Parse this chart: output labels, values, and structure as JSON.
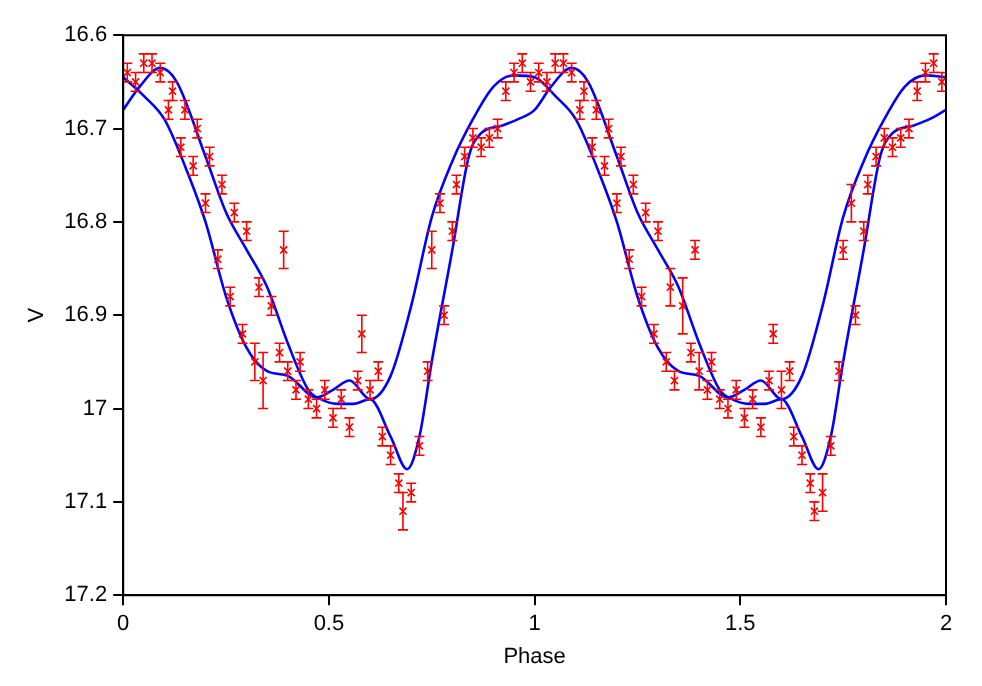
{
  "chart_data": {
    "type": "scatter",
    "xlabel": "Phase",
    "ylabel": "V",
    "xlim": [
      0,
      2
    ],
    "ylim": [
      17.2,
      16.6
    ],
    "xticks": [
      0,
      0.5,
      1,
      1.5,
      2
    ],
    "yticks": [
      16.6,
      16.7,
      16.8,
      16.9,
      17,
      17.1,
      17.2
    ],
    "grid": false,
    "legend": false,
    "series": [
      {
        "type": "scatter",
        "color": "#ff0000",
        "marker": "cross",
        "x": [
          0.01,
          0.03,
          0.05,
          0.07,
          0.09,
          0.11,
          0.12,
          0.14,
          0.15,
          0.17,
          0.18,
          0.2,
          0.21,
          0.23,
          0.24,
          0.26,
          0.27,
          0.29,
          0.3,
          0.32,
          0.33,
          0.34,
          0.36,
          0.38,
          0.39,
          0.4,
          0.42,
          0.43,
          0.45,
          0.47,
          0.49,
          0.51,
          0.53,
          0.55,
          0.57,
          0.58,
          0.6,
          0.62,
          0.63,
          0.65,
          0.67,
          0.68,
          0.7,
          0.72,
          0.74,
          0.75,
          0.77,
          0.78,
          0.8,
          0.81,
          0.83,
          0.85,
          0.87,
          0.89,
          0.91,
          0.93,
          0.95,
          0.97,
          0.99,
          1.01,
          1.03,
          1.05,
          1.07,
          1.09,
          1.11,
          1.12,
          1.14,
          1.15,
          1.17,
          1.18,
          1.2,
          1.21,
          1.23,
          1.24,
          1.26,
          1.27,
          1.29,
          1.3,
          1.32,
          1.33,
          1.34,
          1.36,
          1.38,
          1.39,
          1.4,
          1.42,
          1.43,
          1.45,
          1.47,
          1.49,
          1.51,
          1.53,
          1.55,
          1.57,
          1.58,
          1.6,
          1.62,
          1.63,
          1.65,
          1.67,
          1.68,
          1.7,
          1.72,
          1.74,
          1.75,
          1.77,
          1.78,
          1.8,
          1.81,
          1.83,
          1.85,
          1.87,
          1.89,
          1.91,
          1.93,
          1.95,
          1.97,
          1.99
        ],
        "values": [
          16.64,
          16.65,
          16.63,
          16.63,
          16.64,
          16.68,
          16.66,
          16.72,
          16.68,
          16.74,
          16.7,
          16.78,
          16.73,
          16.84,
          16.76,
          16.88,
          16.79,
          16.92,
          16.81,
          16.95,
          16.87,
          16.97,
          16.89,
          16.94,
          16.83,
          16.96,
          16.98,
          16.95,
          16.99,
          17,
          16.98,
          17.01,
          16.99,
          17.02,
          16.97,
          16.92,
          16.98,
          16.96,
          17.03,
          17.05,
          17.08,
          17.11,
          17.09,
          17.04,
          16.96,
          16.83,
          16.78,
          16.9,
          16.81,
          16.76,
          16.73,
          16.71,
          16.72,
          16.71,
          16.7,
          16.66,
          16.64,
          16.63,
          16.65,
          16.64,
          16.65,
          16.63,
          16.63,
          16.64,
          16.68,
          16.66,
          16.72,
          16.68,
          16.74,
          16.7,
          16.78,
          16.73,
          16.84,
          16.76,
          16.88,
          16.79,
          16.92,
          16.81,
          16.95,
          16.87,
          16.97,
          16.89,
          16.94,
          16.83,
          16.96,
          16.98,
          16.95,
          16.99,
          17,
          16.98,
          17.01,
          16.99,
          17.02,
          16.97,
          16.92,
          16.98,
          16.96,
          17.03,
          17.05,
          17.08,
          17.11,
          17.09,
          17.04,
          16.96,
          16.83,
          16.78,
          16.9,
          16.81,
          16.76,
          16.73,
          16.71,
          16.72,
          16.71,
          16.7,
          16.66,
          16.64,
          16.63,
          16.65
        ],
        "errors": [
          0.01,
          0.01,
          0.01,
          0.01,
          0.01,
          0.01,
          0.01,
          0.01,
          0.01,
          0.01,
          0.01,
          0.01,
          0.01,
          0.01,
          0.01,
          0.01,
          0.01,
          0.01,
          0.01,
          0.02,
          0.01,
          0.03,
          0.01,
          0.01,
          0.02,
          0.01,
          0.01,
          0.01,
          0.01,
          0.01,
          0.01,
          0.01,
          0.01,
          0.01,
          0.01,
          0.02,
          0.01,
          0.01,
          0.01,
          0.01,
          0.01,
          0.02,
          0.01,
          0.01,
          0.01,
          0.02,
          0.01,
          0.01,
          0.01,
          0.01,
          0.01,
          0.01,
          0.01,
          0.01,
          0.01,
          0.01,
          0.01,
          0.01,
          0.01,
          0.01,
          0.01,
          0.01,
          0.01,
          0.01,
          0.01,
          0.01,
          0.01,
          0.01,
          0.01,
          0.01,
          0.01,
          0.01,
          0.01,
          0.01,
          0.01,
          0.01,
          0.01,
          0.01,
          0.01,
          0.02,
          0.01,
          0.03,
          0.01,
          0.01,
          0.02,
          0.01,
          0.01,
          0.01,
          0.01,
          0.01,
          0.01,
          0.01,
          0.01,
          0.01,
          0.01,
          0.02,
          0.01,
          0.01,
          0.01,
          0.01,
          0.01,
          0.02,
          0.01,
          0.01,
          0.01,
          0.02,
          0.01,
          0.01,
          0.01,
          0.01,
          0.01,
          0.01,
          0.01,
          0.01,
          0.01,
          0.01,
          0.01,
          0.01
        ]
      },
      {
        "type": "line",
        "color": "#0000ff",
        "marker": "none",
        "line_style": "solid",
        "x": [
          0,
          0.04,
          0.09,
          0.13,
          0.2,
          0.25,
          0.3,
          0.35,
          0.4,
          0.45,
          0.48,
          0.52,
          0.56,
          0.6,
          0.65,
          0.69,
          0.72,
          0.75,
          0.8,
          0.84,
          0.87,
          0.92,
          0.96,
          1,
          1.04,
          1.09,
          1.13,
          1.2,
          1.25,
          1.3,
          1.35,
          1.4,
          1.45,
          1.48,
          1.52,
          1.56,
          1.6,
          1.65,
          1.69,
          1.72,
          1.75,
          1.8,
          1.84,
          1.87,
          1.92,
          1.96,
          2
        ],
        "values": [
          16.68,
          16.655,
          16.635,
          16.65,
          16.73,
          16.79,
          16.83,
          16.87,
          16.93,
          16.98,
          16.99,
          16.995,
          16.995,
          16.99,
          17.03,
          17.065,
          17.03,
          16.95,
          16.83,
          16.73,
          16.705,
          16.697,
          16.69,
          16.68,
          16.655,
          16.635,
          16.65,
          16.73,
          16.79,
          16.83,
          16.87,
          16.93,
          16.98,
          16.99,
          16.995,
          16.995,
          16.99,
          17.03,
          17.065,
          17.03,
          16.95,
          16.83,
          16.73,
          16.705,
          16.697,
          16.69,
          16.68
        ]
      },
      {
        "type": "line",
        "color": "#0000ff",
        "marker": "none",
        "line_style": "solid",
        "x": [
          0,
          0.05,
          0.1,
          0.15,
          0.2,
          0.25,
          0.3,
          0.35,
          0.4,
          0.47,
          0.51,
          0.55,
          0.6,
          0.65,
          0.7,
          0.75,
          0.8,
          0.85,
          0.9,
          0.95,
          1,
          1.05,
          1.1,
          1.15,
          1.2,
          1.25,
          1.3,
          1.35,
          1.4,
          1.47,
          1.51,
          1.55,
          1.6,
          1.65,
          1.7,
          1.75,
          1.8,
          1.85,
          1.9,
          1.95,
          2
        ],
        "values": [
          16.645,
          16.665,
          16.69,
          16.74,
          16.8,
          16.88,
          16.935,
          16.96,
          16.965,
          16.988,
          16.98,
          16.97,
          16.99,
          16.965,
          16.89,
          16.795,
          16.735,
          16.69,
          16.655,
          16.643,
          16.645,
          16.665,
          16.69,
          16.74,
          16.8,
          16.88,
          16.935,
          16.96,
          16.965,
          16.988,
          16.98,
          16.97,
          16.99,
          16.965,
          16.89,
          16.795,
          16.735,
          16.69,
          16.655,
          16.643,
          16.645
        ]
      }
    ]
  }
}
